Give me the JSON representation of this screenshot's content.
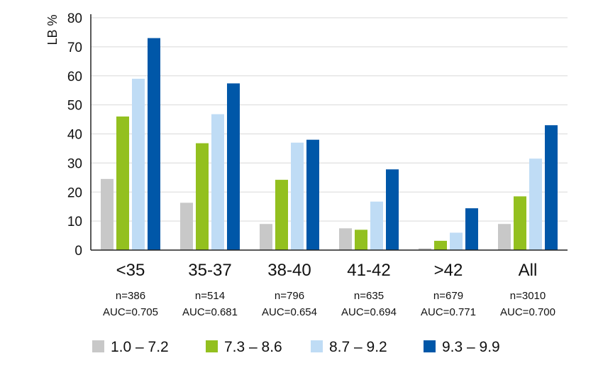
{
  "chart_data": {
    "type": "bar",
    "ylabel": "LB %",
    "xlabel": "",
    "ylim": [
      0,
      80
    ],
    "yticks": [
      0,
      10,
      20,
      30,
      40,
      50,
      60,
      70,
      80
    ],
    "grid": true,
    "legend_placement": "bottom",
    "categories": [
      "<35",
      "35-37",
      "38-40",
      "41-42",
      ">42",
      "All"
    ],
    "category_notes": [
      {
        "n": "n=386",
        "auc": "AUC=0.705"
      },
      {
        "n": "n=514",
        "auc": "AUC=0.681"
      },
      {
        "n": "n=796",
        "auc": "AUC=0.654"
      },
      {
        "n": "n=635",
        "auc": "AUC=0.694"
      },
      {
        "n": "n=679",
        "auc": "AUC=0.771"
      },
      {
        "n": "n=3010",
        "auc": "AUC=0.700"
      }
    ],
    "series": [
      {
        "name": "1.0 – 7.2",
        "color": "#c8c8c8",
        "values": [
          24.5,
          16.3,
          9.0,
          7.5,
          0.6,
          9.0
        ]
      },
      {
        "name": "7.3 – 8.6",
        "color": "#93c01f",
        "values": [
          46.0,
          36.8,
          24.2,
          7.0,
          3.2,
          18.5
        ]
      },
      {
        "name": "8.7 – 9.2",
        "color": "#bfdcf5",
        "values": [
          59.0,
          46.8,
          37.0,
          16.7,
          6.0,
          31.5
        ]
      },
      {
        "name": "9.3 – 9.9",
        "color": "#0057a8",
        "values": [
          73.0,
          57.4,
          38.0,
          27.8,
          14.4,
          43.0
        ]
      }
    ]
  }
}
